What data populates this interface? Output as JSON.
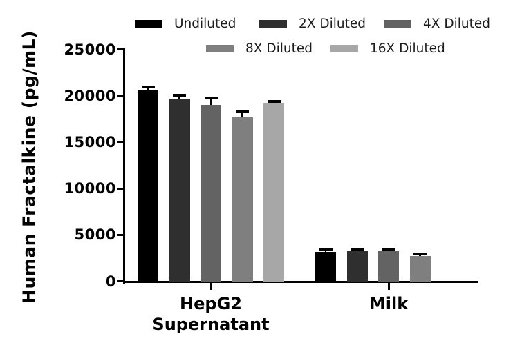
{
  "chart_data": {
    "type": "grouped_bar",
    "title": "",
    "ylabel": "Human Fractalkine (pg/mL)",
    "xlabel": "",
    "ylim": [
      0,
      25000
    ],
    "y_ticks": [
      0,
      5000,
      10000,
      15000,
      20000,
      25000
    ],
    "grid": false,
    "legend_position": "top, two rows",
    "error_bars": "black upward whiskers with caps",
    "axis_color": "#000000",
    "background_color": "#ffffff",
    "series": [
      {
        "name": "Undiluted",
        "color": "#000000"
      },
      {
        "name": "2X Diluted",
        "color": "#2f2f2f"
      },
      {
        "name": "4X Diluted",
        "color": "#636363"
      },
      {
        "name": "8X Diluted",
        "color": "#7f7f7f"
      },
      {
        "name": "16X Diluted",
        "color": "#a7a7a7"
      }
    ],
    "groups": [
      {
        "label": "HepG2\nSupernatant",
        "values": [
          20600,
          19700,
          19000,
          17700,
          19200
        ],
        "errors": [
          300,
          350,
          750,
          600,
          150
        ]
      },
      {
        "label": "Milk",
        "values": [
          3150,
          3250,
          3250,
          2750,
          null
        ],
        "errors": [
          200,
          200,
          200,
          150,
          null
        ]
      }
    ]
  }
}
